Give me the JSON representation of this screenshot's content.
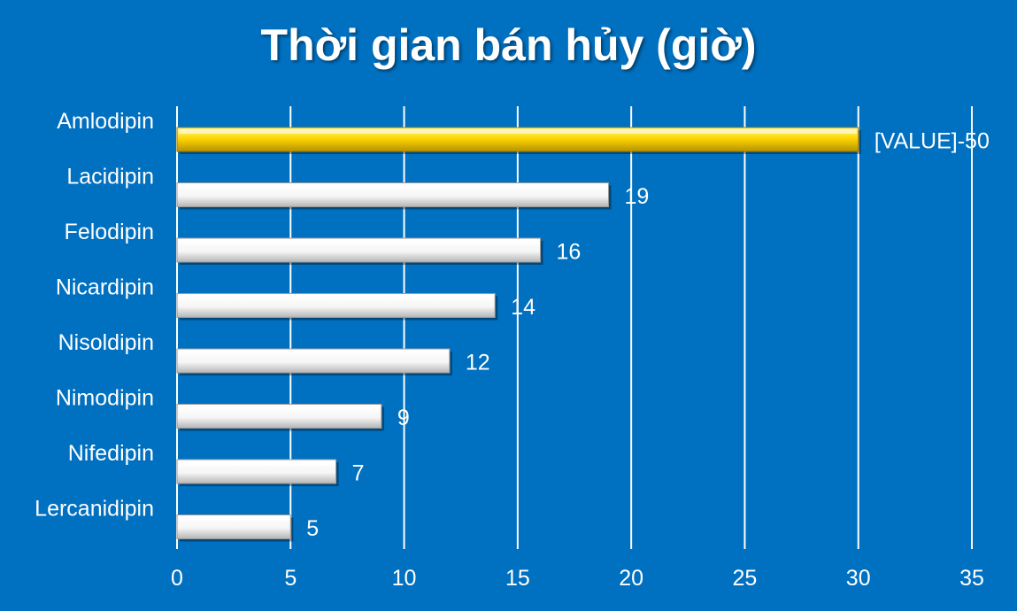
{
  "chart_data": {
    "type": "bar",
    "orientation": "horizontal",
    "title": "Thời gian bán hủy (giờ)",
    "xlabel": "",
    "ylabel": "",
    "categories": [
      "Amlodipin",
      "Lacidipin",
      "Felodipin",
      "Nicardipin",
      "Nisoldipin",
      "Nimodipin",
      "Nifedipin",
      "Lercanidipin"
    ],
    "values": [
      30,
      19,
      16,
      14,
      12,
      9,
      7,
      5
    ],
    "data_labels": [
      "[VALUE]-50",
      "19",
      "16",
      "14",
      "12",
      "9",
      "7",
      "5"
    ],
    "xlim": [
      0,
      35
    ],
    "x_ticks": [
      0,
      5,
      10,
      15,
      20,
      25,
      30,
      35
    ],
    "grid": "vertical",
    "legend": "none",
    "highlight_index": 0,
    "colors": {
      "background": "#0070c0",
      "highlight_bar": "#ffd700",
      "bar": "#ffffff",
      "gridline": "#ffffff",
      "text": "#ffffff"
    }
  }
}
